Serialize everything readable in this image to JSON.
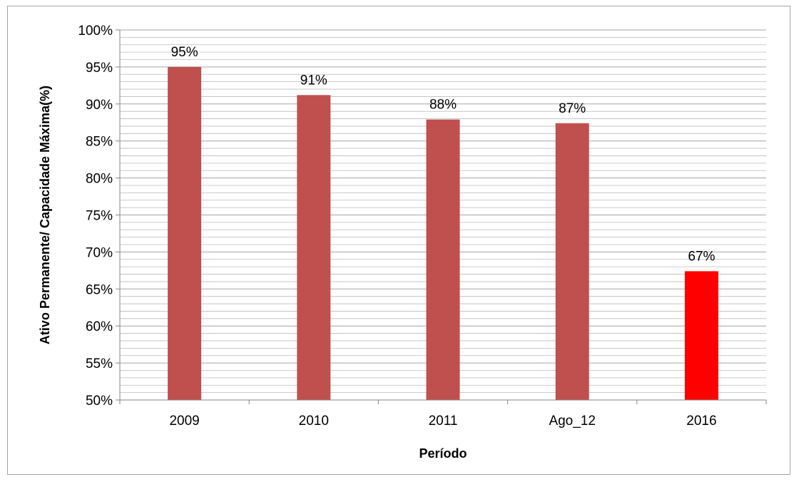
{
  "chart_data": {
    "type": "bar",
    "title": "",
    "xlabel": "Período",
    "ylabel": "Ativo Permanente/ Capacidade Máxima(%)",
    "categories": [
      "2009",
      "2010",
      "2011",
      "Ago_12",
      "2016"
    ],
    "values": [
      95,
      91.2,
      87.9,
      87.4,
      67.4
    ],
    "data_labels": [
      "95%",
      "91%",
      "88%",
      "87%",
      "67%"
    ],
    "ylim": [
      50,
      100
    ],
    "y_ticks": [
      50,
      55,
      60,
      65,
      70,
      75,
      80,
      85,
      90,
      95,
      100
    ],
    "y_tick_labels": [
      "50%",
      "55%",
      "60%",
      "65%",
      "70%",
      "75%",
      "80%",
      "85%",
      "90%",
      "95%",
      "100%"
    ],
    "grid": true,
    "legend": "none",
    "colors": {
      "bar": "#c0504d",
      "highlight_bar": "#ff0000",
      "highlight_category": "2016",
      "grid": "#a6a6a6",
      "frame": "#a6a6a6"
    }
  }
}
